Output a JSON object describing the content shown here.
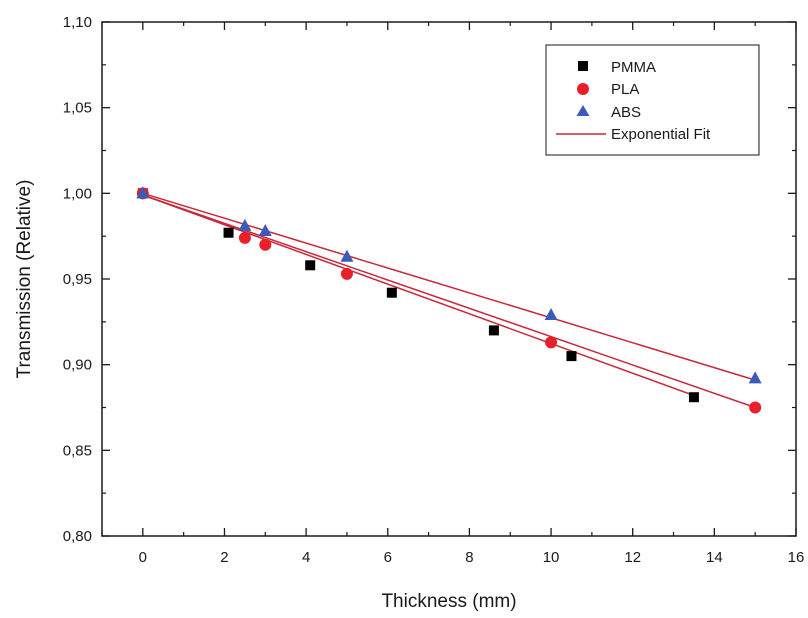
{
  "chart_data": {
    "type": "scatter",
    "title": "",
    "xlabel": "Thickness (mm)",
    "ylabel": "Transmission (Relative)",
    "xlim": [
      -1,
      16
    ],
    "ylim": [
      0.8,
      1.1
    ],
    "x_ticks": [
      {
        "value": 0,
        "label": "0"
      },
      {
        "value": 2,
        "label": "2"
      },
      {
        "value": 4,
        "label": "4"
      },
      {
        "value": 6,
        "label": "6"
      },
      {
        "value": 8,
        "label": "8"
      },
      {
        "value": 10,
        "label": "10"
      },
      {
        "value": 12,
        "label": "12"
      },
      {
        "value": 14,
        "label": "14"
      },
      {
        "value": 16,
        "label": "16"
      }
    ],
    "y_ticks": [
      {
        "value": 0.8,
        "label": "0,80"
      },
      {
        "value": 0.85,
        "label": "0,85"
      },
      {
        "value": 0.9,
        "label": "0,90"
      },
      {
        "value": 0.95,
        "label": "0,95"
      },
      {
        "value": 1.0,
        "label": "1,00"
      },
      {
        "value": 1.05,
        "label": "1,05"
      },
      {
        "value": 1.1,
        "label": "1,10"
      }
    ],
    "grid": false,
    "legend_position": "top-right",
    "series": [
      {
        "name": "PMMA",
        "marker": "square",
        "color": "#000000",
        "x": [
          0,
          2.1,
          4.1,
          6.1,
          8.6,
          10.5,
          13.5
        ],
        "y": [
          1.0,
          0.977,
          0.958,
          0.942,
          0.92,
          0.905,
          0.881
        ]
      },
      {
        "name": "PLA",
        "marker": "circle",
        "color": "#e8202a",
        "x": [
          0,
          2.5,
          3.0,
          5.0,
          10.0,
          15.0
        ],
        "y": [
          1.0,
          0.974,
          0.97,
          0.953,
          0.913,
          0.875
        ]
      },
      {
        "name": "ABS",
        "marker": "triangle",
        "color": "#3a5bb8",
        "x": [
          0,
          2.5,
          3.0,
          5.0,
          10.0,
          15.0
        ],
        "y": [
          1.0,
          0.981,
          0.978,
          0.963,
          0.929,
          0.892
        ]
      }
    ],
    "fits": [
      {
        "name": "Exponential Fit",
        "color": "#c8283a",
        "lines": [
          {
            "for": "PMMA",
            "x": [
              0,
              13.5
            ],
            "y": [
              0.999,
              0.882
            ]
          },
          {
            "for": "PLA",
            "x": [
              0,
              15.0
            ],
            "y": [
              0.999,
              0.875
            ]
          },
          {
            "for": "ABS",
            "x": [
              0,
              15.0
            ],
            "y": [
              1.0,
              0.891
            ]
          }
        ]
      }
    ]
  }
}
